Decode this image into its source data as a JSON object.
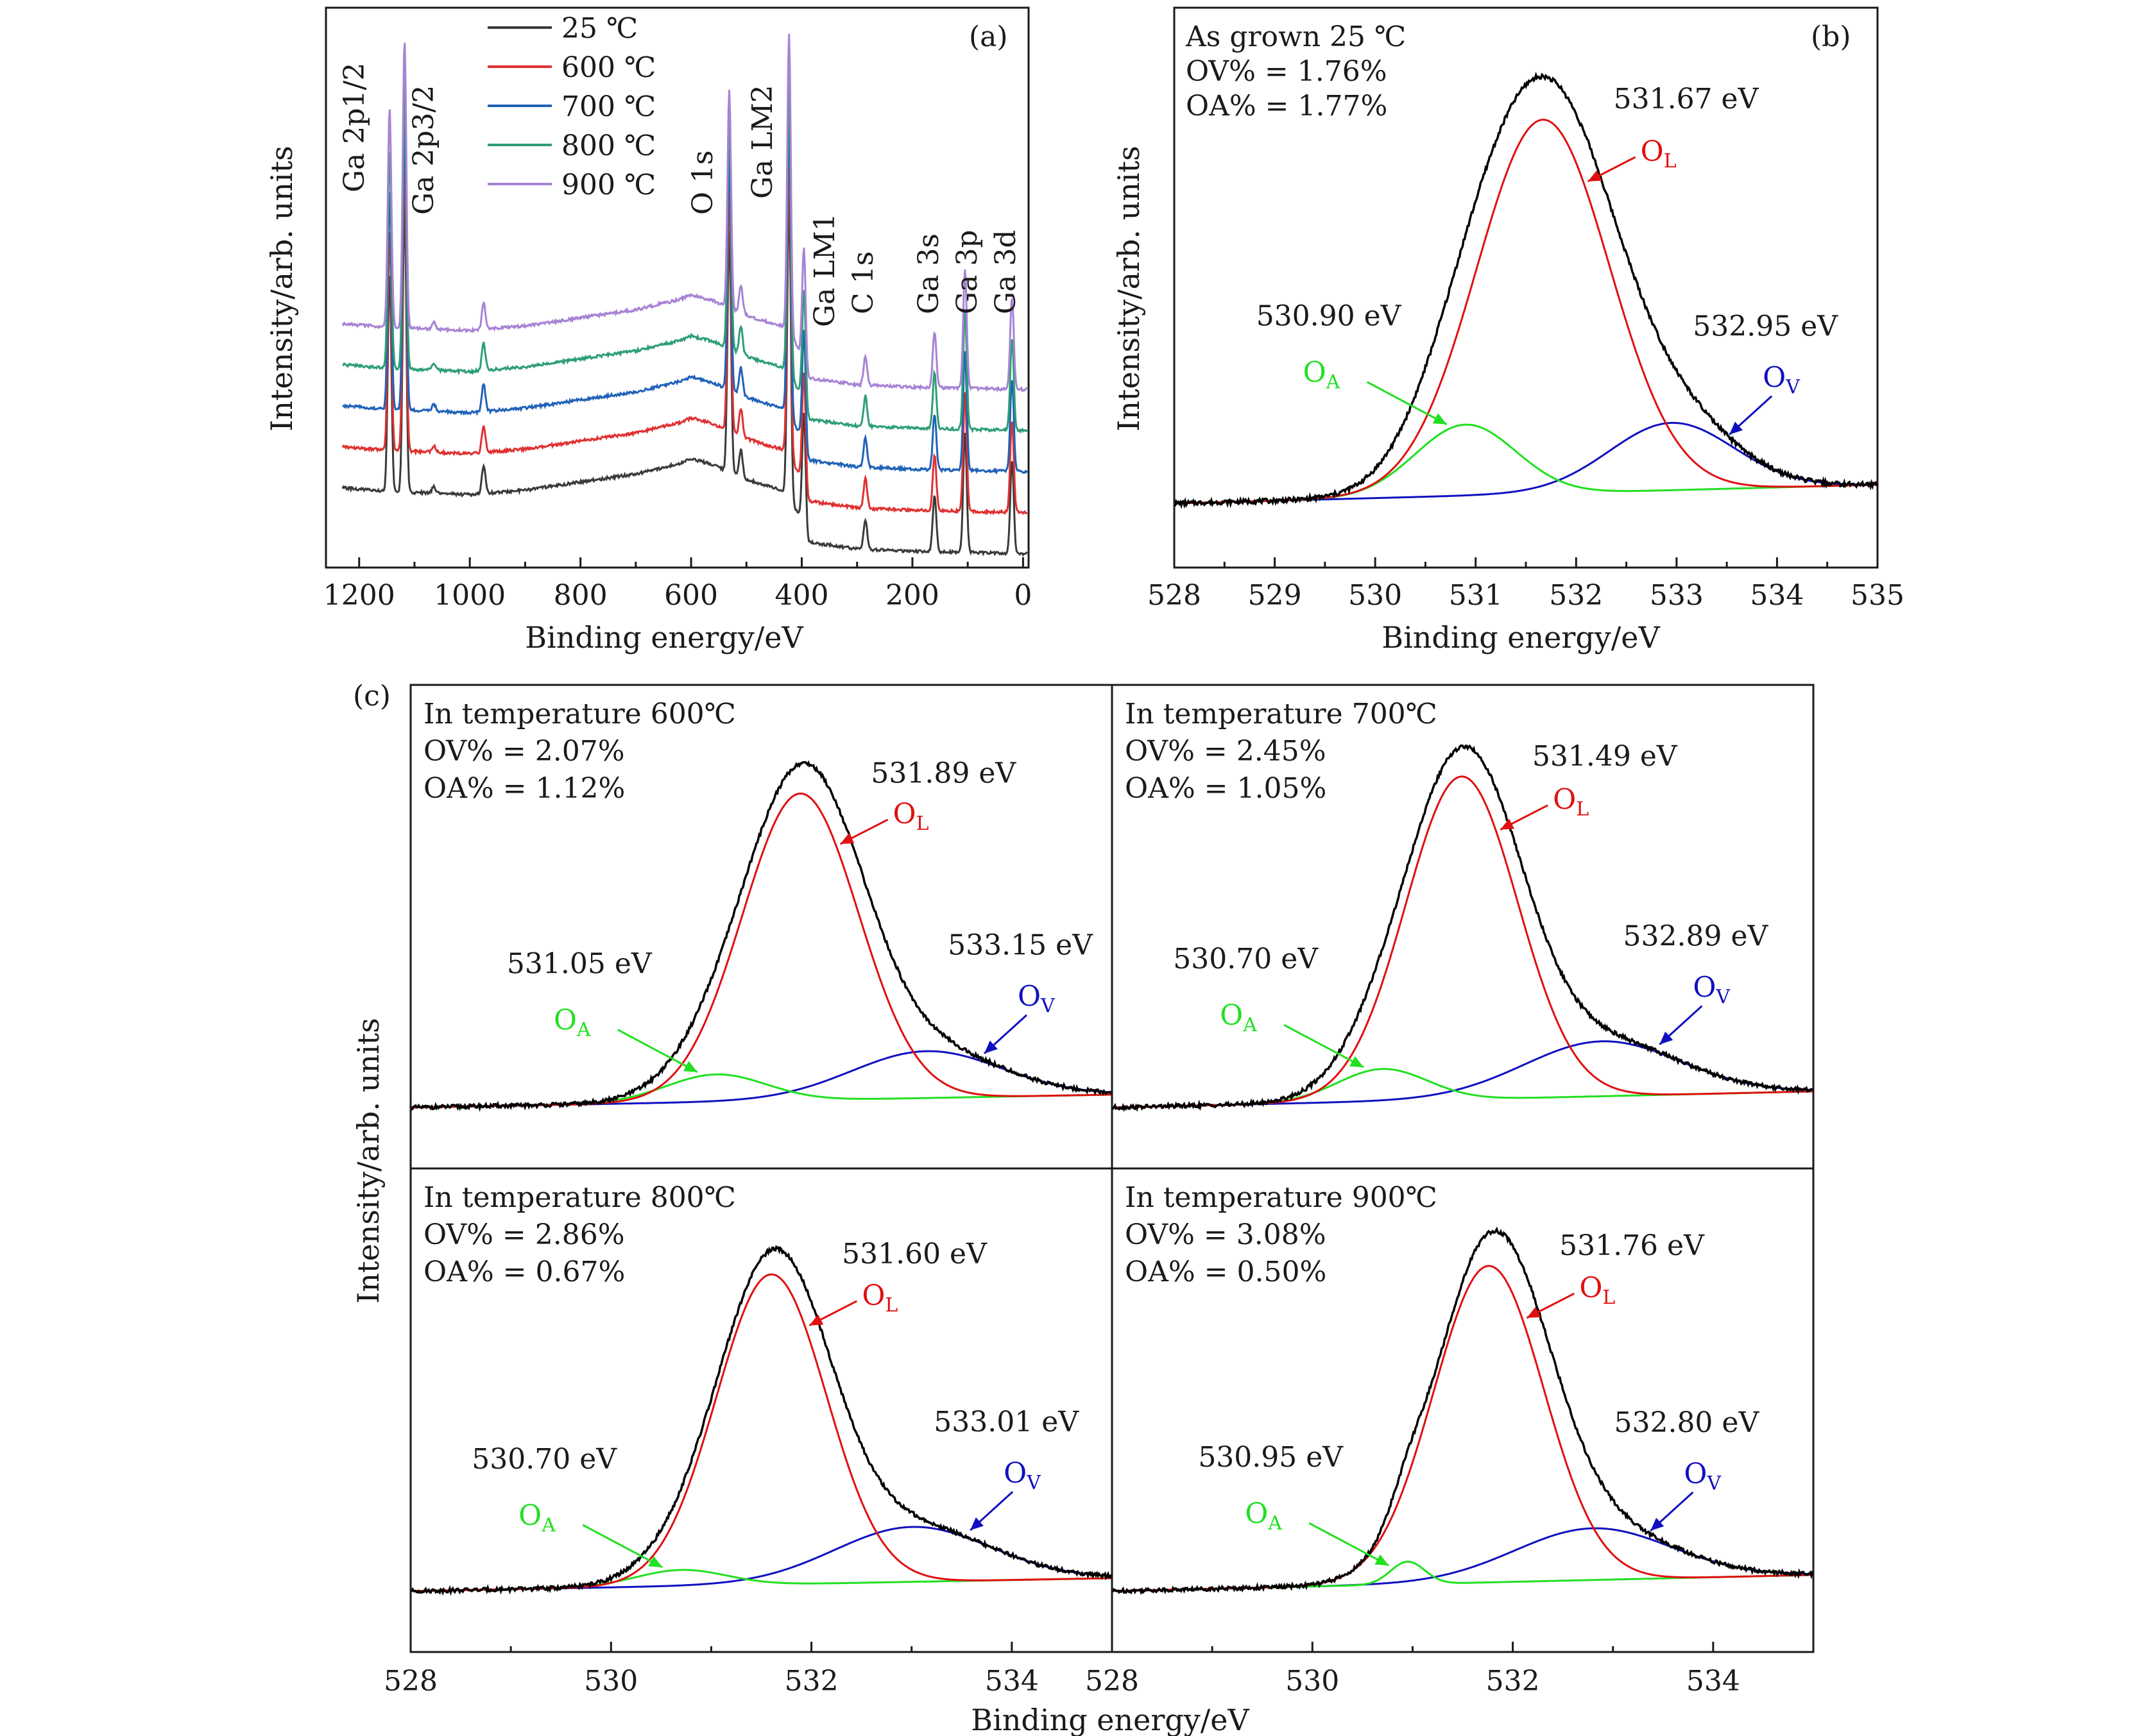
{
  "colors": {
    "frame": "#1a1a1a",
    "t25": "#3a3a3a",
    "t600": "#e03030",
    "t700": "#2062b8",
    "t800": "#2e9e74",
    "t900": "#a883d4",
    "black_fit": "#000000",
    "red_fit": "#e01010",
    "blue_fit": "#1010c0",
    "green_fit": "#20e020"
  },
  "chart_data": [
    {
      "id": "a",
      "type": "line",
      "panel_label": "(a)",
      "title": "",
      "xlabel": "Binding energy/eV",
      "ylabel": "Intensity/arb. units",
      "xlim": [
        1260,
        -10
      ],
      "xticks": [
        "1200",
        "1000",
        "800",
        "600",
        "400",
        "200",
        "0"
      ],
      "xtick_values": [
        1200,
        1000,
        800,
        600,
        400,
        200,
        0
      ],
      "y_ticks_shown": false,
      "legend_position": "top-left",
      "series": [
        {
          "name": "25 ℃",
          "color_key": "t25",
          "offset": 0
        },
        {
          "name": "600 ℃",
          "color_key": "t600",
          "offset": 1
        },
        {
          "name": "700 ℃",
          "color_key": "t700",
          "offset": 2
        },
        {
          "name": "800 ℃",
          "color_key": "t800",
          "offset": 3
        },
        {
          "name": "900 ℃",
          "color_key": "t900",
          "offset": 4
        }
      ],
      "baseline_profile": [
        [
          1230,
          2.9
        ],
        [
          1150,
          2.75
        ],
        [
          1100,
          2.7
        ],
        [
          1000,
          2.6
        ],
        [
          900,
          2.8
        ],
        [
          800,
          3.15
        ],
        [
          700,
          3.5
        ],
        [
          620,
          3.95
        ],
        [
          600,
          4.15
        ],
        [
          560,
          3.9
        ],
        [
          520,
          3.45
        ],
        [
          480,
          3.1
        ],
        [
          430,
          2.75
        ],
        [
          400,
          1.55
        ],
        [
          390,
          0.55
        ],
        [
          300,
          0.25
        ],
        [
          200,
          0.15
        ],
        [
          100,
          0.1
        ],
        [
          0,
          0.05
        ],
        [
          -10,
          0.05
        ]
      ],
      "peaks": [
        {
          "label": "Ga 2p1/2",
          "energy": 1145,
          "height": 9.5
        },
        {
          "label": "Ga 2p3/2",
          "energy": 1118,
          "height": 12.5
        },
        {
          "label": "",
          "energy": 1065,
          "height": 0.3
        },
        {
          "label": "",
          "energy": 975,
          "height": 1.2
        },
        {
          "label": "O 1s",
          "energy": 531,
          "height": 10.5
        },
        {
          "label": "Ga LM2",
          "energy": 510,
          "height": 1.2
        },
        {
          "label": "Ga LM1",
          "energy": 423,
          "height": 13
        },
        {
          "label": "",
          "energy": 396,
          "height": 5
        },
        {
          "label": "C 1s",
          "energy": 285,
          "height": 1.3
        },
        {
          "label": "Ga 3s",
          "energy": 160,
          "height": 2.4
        },
        {
          "label": "Ga 3p",
          "energy": 105,
          "height": 5.2
        },
        {
          "label": "Ga 3d",
          "energy": 20,
          "height": 4.0
        }
      ],
      "peak_labels": [
        "Ga 2p1/2",
        "Ga 2p3/2",
        "O 1s",
        "Ga LM2",
        "Ga LM1",
        "C 1s",
        "Ga 3s",
        "Ga 3p",
        "Ga 3d"
      ]
    },
    {
      "id": "b",
      "type": "line",
      "panel_label": "(b)",
      "xlabel": "Binding energy/eV",
      "ylabel": "Intensity/arb. units",
      "xlim": [
        528,
        535
      ],
      "xticks": [
        "528",
        "529",
        "530",
        "531",
        "532",
        "533",
        "534",
        "535"
      ],
      "xtick_values": [
        528,
        529,
        530,
        531,
        532,
        533,
        534,
        535
      ],
      "ylim": [
        0,
        1.12
      ],
      "header": "As grown 25 ℃",
      "ov_text": "OV% = 1.76%",
      "oa_text": "OA% = 1.77%",
      "components": [
        {
          "name": "OA",
          "center": 530.9,
          "amp": 0.19,
          "sigma": 0.5,
          "annotation": "530.90 eV"
        },
        {
          "name": "OL",
          "center": 531.67,
          "amp": 1.0,
          "sigma": 0.66,
          "annotation": "531.67 eV"
        },
        {
          "name": "OV",
          "center": 532.95,
          "amp": 0.18,
          "sigma": 0.62,
          "annotation": "532.95 eV"
        }
      ],
      "baseline": [
        0.0,
        0.05
      ]
    }
  ],
  "panel_c": {
    "panel_label": "(c)",
    "xlabel": "Binding energy/eV",
    "ylabel": "Intensity/arb. units",
    "xlim": [
      528,
      535
    ],
    "xticks": [
      "528",
      "530",
      "532",
      "534"
    ],
    "xtick_values": [
      528,
      530,
      532,
      534
    ],
    "subplots": [
      {
        "type": "line",
        "header": "In temperature 600℃",
        "ov_text": "OV% = 2.07%",
        "oa_text": "OA% = 1.12%",
        "components": [
          {
            "name": "OA",
            "center": 531.05,
            "amp": 0.085,
            "sigma": 0.5,
            "annotation": "531.05 eV"
          },
          {
            "name": "OL",
            "center": 531.89,
            "amp": 0.95,
            "sigma": 0.58,
            "annotation": "531.89 eV"
          },
          {
            "name": "OV",
            "center": 533.15,
            "amp": 0.145,
            "sigma": 0.75,
            "annotation": "533.15 eV"
          }
        ],
        "ylim": [
          0,
          1.12
        ],
        "baseline": [
          0.0,
          0.04
        ]
      },
      {
        "type": "line",
        "header": "In temperature 700℃",
        "ov_text": "OV% = 2.45%",
        "oa_text": "OA% = 1.05%",
        "components": [
          {
            "name": "OA",
            "center": 530.7,
            "amp": 0.1,
            "sigma": 0.45,
            "annotation": "530.70 eV"
          },
          {
            "name": "OL",
            "center": 531.49,
            "amp": 1.0,
            "sigma": 0.56,
            "annotation": "531.49 eV"
          },
          {
            "name": "OV",
            "center": 532.89,
            "amp": 0.17,
            "sigma": 0.78,
            "annotation": "532.89 eV"
          }
        ],
        "ylim": [
          0,
          1.12
        ],
        "baseline": [
          0.0,
          0.05
        ]
      },
      {
        "type": "line",
        "header": "In temperature 800℃",
        "ov_text": "OV% = 2.86%",
        "oa_text": "OA% = 0.67%",
        "components": [
          {
            "name": "OA",
            "center": 530.7,
            "amp": 0.05,
            "sigma": 0.45,
            "annotation": "530.70 eV"
          },
          {
            "name": "OL",
            "center": 531.6,
            "amp": 0.96,
            "sigma": 0.55,
            "annotation": "531.60 eV"
          },
          {
            "name": "OV",
            "center": 533.01,
            "amp": 0.17,
            "sigma": 0.78,
            "annotation": "533.01 eV"
          }
        ],
        "ylim": [
          0,
          1.12
        ],
        "baseline": [
          0.0,
          0.04
        ]
      },
      {
        "type": "line",
        "header": "In temperature 900℃",
        "ov_text": "OV% = 3.08%",
        "oa_text": "OA% = 0.50%",
        "components": [
          {
            "name": "OA",
            "center": 530.95,
            "amp": 0.07,
            "sigma": 0.17,
            "annotation": "530.95 eV"
          },
          {
            "name": "OL",
            "center": 531.76,
            "amp": 0.98,
            "sigma": 0.55,
            "annotation": "531.76 eV"
          },
          {
            "name": "OV",
            "center": 532.8,
            "amp": 0.16,
            "sigma": 0.78,
            "annotation": "532.80 eV"
          }
        ],
        "ylim": [
          0,
          1.12
        ],
        "baseline": [
          0.0,
          0.05
        ]
      }
    ]
  }
}
